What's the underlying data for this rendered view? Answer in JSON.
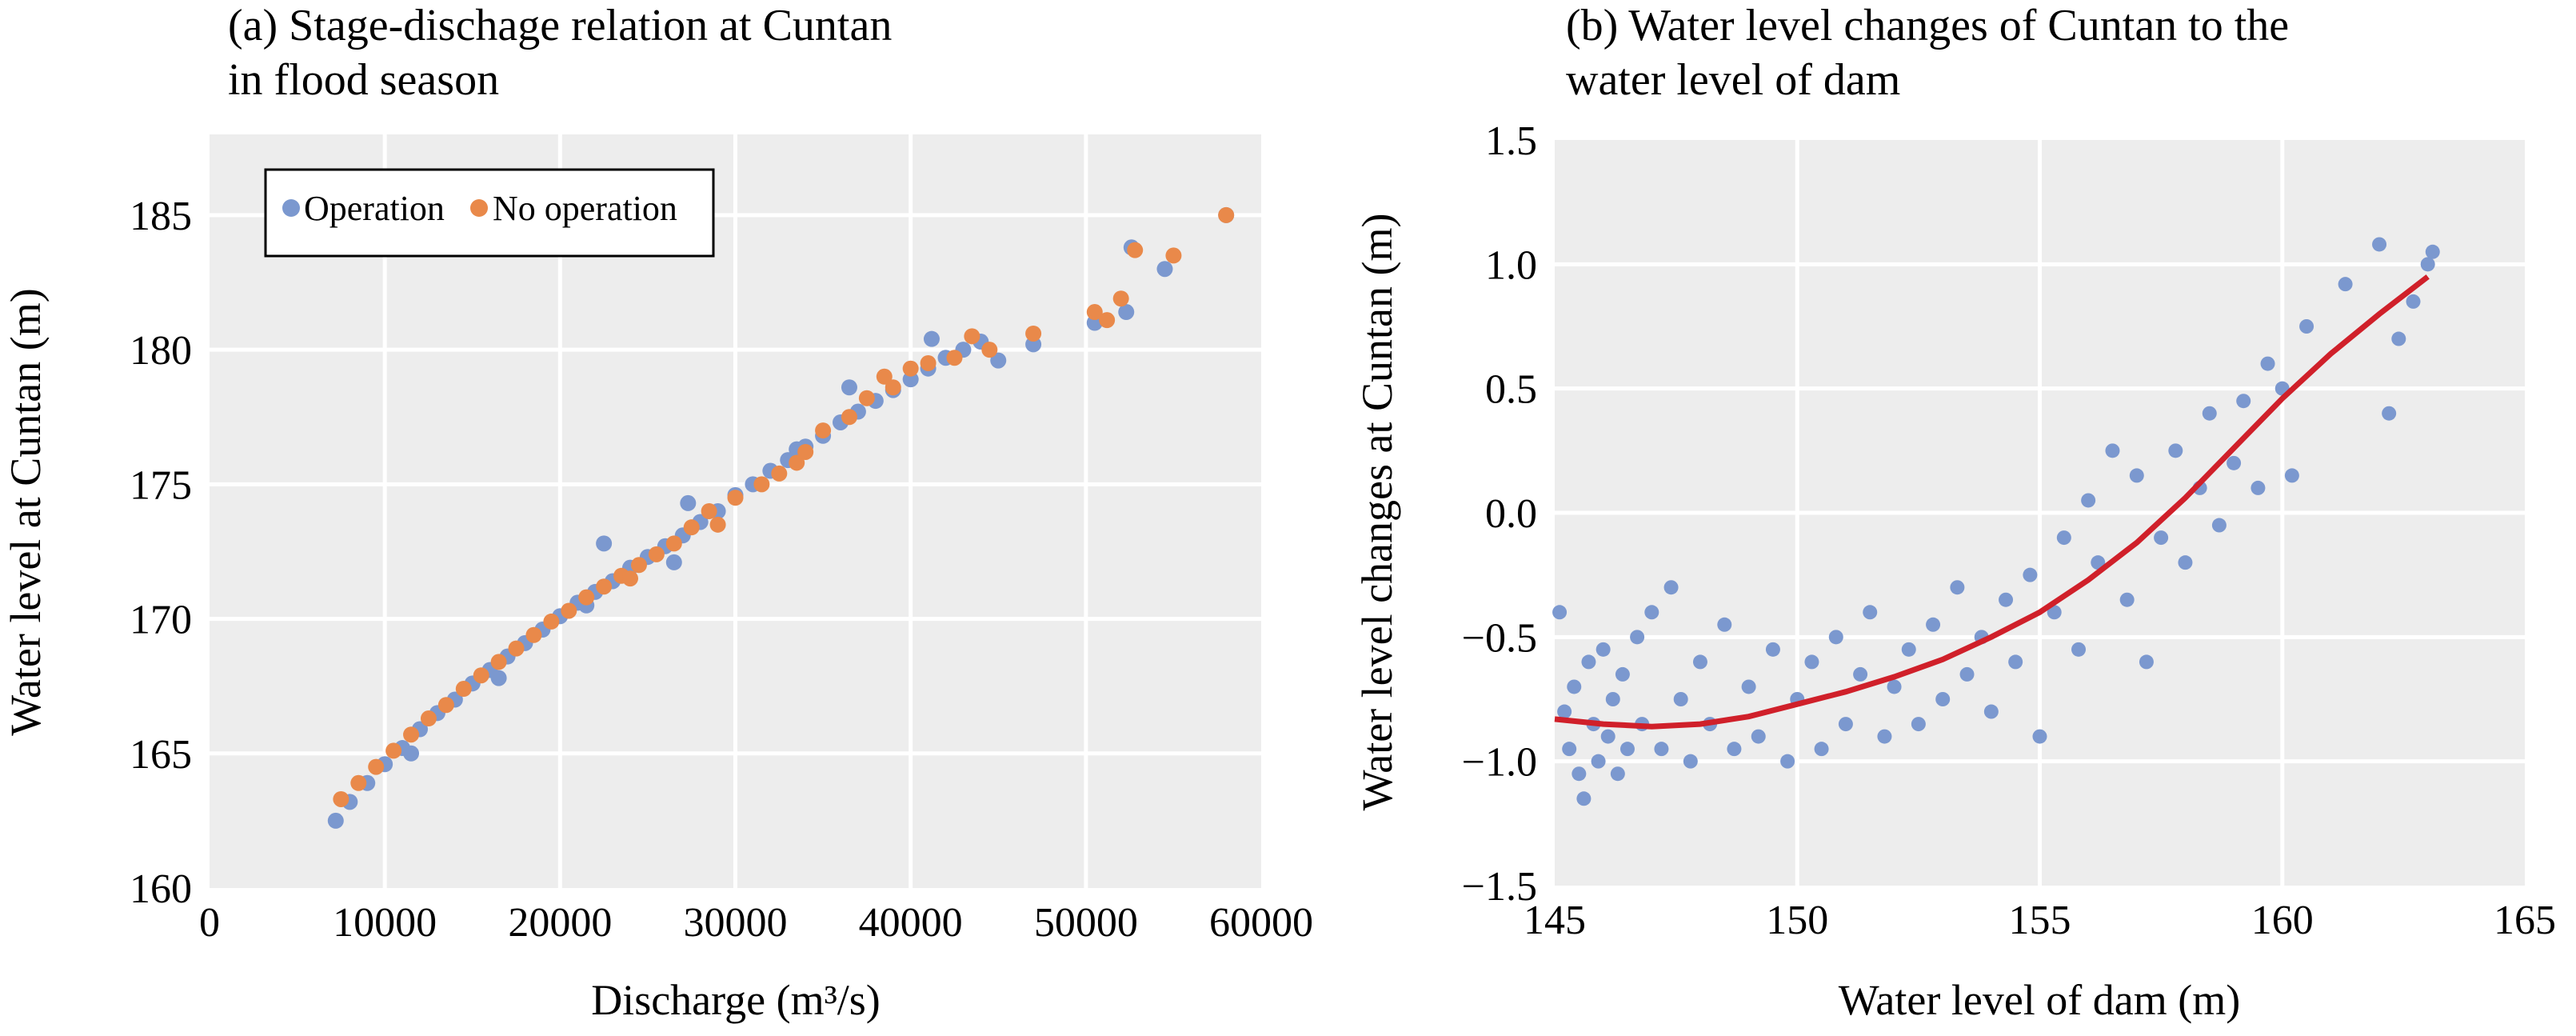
{
  "figure": {
    "panel_a": {
      "title_line1": "(a) Stage-dischage relation at Cuntan",
      "title_line2": "in flood season",
      "xlabel": "Discharge (m³/s)",
      "ylabel": "Water level at Cuntan (m)",
      "legend": {
        "operation": "Operation",
        "no_operation": "No operation"
      }
    },
    "panel_b": {
      "title_line1": "(b) Water level changes of Cuntan to the",
      "title_line2": "water level of dam",
      "xlabel": "Water level of dam (m)",
      "ylabel": "Water level changes at Cuntan (m)"
    }
  },
  "chart_data": [
    {
      "type": "scatter",
      "title": "(a) Stage-dischage relation at Cuntan in flood season",
      "xlabel": "Discharge (m³/s)",
      "ylabel": "Water level at Cuntan (m)",
      "xlim": [
        0,
        60000
      ],
      "ylim": [
        160,
        188
      ],
      "xticks": [
        "0",
        "10000",
        "20000",
        "30000",
        "40000",
        "50000",
        "60000"
      ],
      "yticks": [
        "160",
        "165",
        "170",
        "175",
        "180",
        "185"
      ],
      "grid": true,
      "legend_position": "top-left",
      "colors": {
        "Operation": "#7b98cf",
        "No operation": "#e9894a"
      },
      "series": [
        {
          "name": "Operation",
          "points": [
            [
              7200,
              162.5
            ],
            [
              8000,
              163.2
            ],
            [
              9000,
              163.9
            ],
            [
              10000,
              164.6
            ],
            [
              11000,
              165.2
            ],
            [
              12000,
              165.9
            ],
            [
              13000,
              166.5
            ],
            [
              14000,
              167.0
            ],
            [
              15000,
              167.6
            ],
            [
              16000,
              168.1
            ],
            [
              17000,
              168.6
            ],
            [
              18000,
              169.1
            ],
            [
              19000,
              169.6
            ],
            [
              20000,
              170.1
            ],
            [
              21000,
              170.6
            ],
            [
              22000,
              171.0
            ],
            [
              23000,
              171.4
            ],
            [
              24000,
              171.9
            ],
            [
              25000,
              172.3
            ],
            [
              26000,
              172.7
            ],
            [
              27000,
              173.1
            ],
            [
              28000,
              173.6
            ],
            [
              29000,
              174.0
            ],
            [
              30000,
              174.6
            ],
            [
              31000,
              175.0
            ],
            [
              32000,
              175.5
            ],
            [
              33000,
              175.9
            ],
            [
              34000,
              176.4
            ],
            [
              35000,
              176.8
            ],
            [
              36000,
              177.3
            ],
            [
              37000,
              177.7
            ],
            [
              38000,
              178.1
            ],
            [
              39000,
              178.5
            ],
            [
              40000,
              178.9
            ],
            [
              41000,
              179.3
            ],
            [
              42000,
              179.7
            ],
            [
              43000,
              180.0
            ],
            [
              44000,
              180.3
            ],
            [
              45000,
              179.6
            ],
            [
              47000,
              180.2
            ],
            [
              50500,
              181.0
            ],
            [
              52300,
              181.4
            ],
            [
              52600,
              183.8
            ],
            [
              54500,
              183.0
            ],
            [
              58000,
              185.0
            ],
            [
              11500,
              165.0
            ],
            [
              16500,
              167.8
            ],
            [
              21500,
              170.5
            ],
            [
              26500,
              172.1
            ],
            [
              33500,
              176.3
            ],
            [
              36500,
              178.6
            ],
            [
              41200,
              180.4
            ],
            [
              22500,
              172.8
            ],
            [
              27300,
              174.3
            ]
          ]
        },
        {
          "name": "No operation",
          "points": [
            [
              7500,
              163.3
            ],
            [
              8500,
              163.9
            ],
            [
              9500,
              164.5
            ],
            [
              10500,
              165.1
            ],
            [
              11500,
              165.7
            ],
            [
              12500,
              166.3
            ],
            [
              13500,
              166.8
            ],
            [
              14500,
              167.4
            ],
            [
              15500,
              167.9
            ],
            [
              16500,
              168.4
            ],
            [
              17500,
              168.9
            ],
            [
              18500,
              169.4
            ],
            [
              19500,
              169.9
            ],
            [
              20500,
              170.3
            ],
            [
              21500,
              170.8
            ],
            [
              22500,
              171.2
            ],
            [
              23500,
              171.6
            ],
            [
              24500,
              172.0
            ],
            [
              25500,
              172.4
            ],
            [
              26500,
              172.8
            ],
            [
              27500,
              173.4
            ],
            [
              28500,
              174.0
            ],
            [
              30000,
              174.5
            ],
            [
              31500,
              175.0
            ],
            [
              32500,
              175.4
            ],
            [
              33500,
              175.8
            ],
            [
              35000,
              177.0
            ],
            [
              36500,
              177.5
            ],
            [
              37500,
              178.2
            ],
            [
              38500,
              179.0
            ],
            [
              40000,
              179.3
            ],
            [
              41000,
              179.5
            ],
            [
              42500,
              179.7
            ],
            [
              43500,
              180.5
            ],
            [
              44500,
              180.0
            ],
            [
              47000,
              180.6
            ],
            [
              50500,
              181.4
            ],
            [
              51200,
              181.1
            ],
            [
              52000,
              181.9
            ],
            [
              52800,
              183.7
            ],
            [
              55000,
              183.5
            ],
            [
              58000,
              185.0
            ],
            [
              24000,
              171.5
            ],
            [
              29000,
              173.5
            ],
            [
              34000,
              176.2
            ],
            [
              39000,
              178.6
            ]
          ]
        }
      ]
    },
    {
      "type": "scatter",
      "title": "(b) Water level changes of Cuntan to the water level of dam",
      "xlabel": "Water level of dam (m)",
      "ylabel": "Water level changes at Cuntan (m)",
      "xlim": [
        145,
        165
      ],
      "ylim": [
        -1.5,
        1.5
      ],
      "xticks": [
        "145",
        "150",
        "155",
        "160",
        "165"
      ],
      "yticks": [
        "−1.5",
        "−1.0",
        "−0.5",
        "0.0",
        "0.5",
        "1.0",
        "1.5"
      ],
      "grid": true,
      "colors": {
        "points": "#7b98cf",
        "fit": "#d0202a"
      },
      "fit_curve": [
        [
          145,
          -0.83
        ],
        [
          146,
          -0.85
        ],
        [
          147,
          -0.86
        ],
        [
          148,
          -0.85
        ],
        [
          149,
          -0.82
        ],
        [
          150,
          -0.77
        ],
        [
          151,
          -0.72
        ],
        [
          152,
          -0.66
        ],
        [
          153,
          -0.59
        ],
        [
          154,
          -0.5
        ],
        [
          155,
          -0.4
        ],
        [
          156,
          -0.27
        ],
        [
          157,
          -0.12
        ],
        [
          158,
          0.06
        ],
        [
          159,
          0.26
        ],
        [
          160,
          0.46
        ],
        [
          161,
          0.64
        ],
        [
          162,
          0.8
        ],
        [
          163,
          0.95
        ]
      ],
      "points": [
        [
          145.1,
          -0.4
        ],
        [
          145.2,
          -0.8
        ],
        [
          145.3,
          -0.95
        ],
        [
          145.4,
          -0.7
        ],
        [
          145.5,
          -1.05
        ],
        [
          145.6,
          -1.15
        ],
        [
          145.7,
          -0.6
        ],
        [
          145.8,
          -0.85
        ],
        [
          145.9,
          -1.0
        ],
        [
          146.0,
          -0.55
        ],
        [
          146.1,
          -0.9
        ],
        [
          146.2,
          -0.75
        ],
        [
          146.3,
          -1.05
        ],
        [
          146.4,
          -0.65
        ],
        [
          146.5,
          -0.95
        ],
        [
          146.7,
          -0.5
        ],
        [
          146.8,
          -0.85
        ],
        [
          147.0,
          -0.4
        ],
        [
          147.2,
          -0.95
        ],
        [
          147.4,
          -0.3
        ],
        [
          147.6,
          -0.75
        ],
        [
          147.8,
          -1.0
        ],
        [
          148.0,
          -0.6
        ],
        [
          148.2,
          -0.85
        ],
        [
          148.5,
          -0.45
        ],
        [
          148.7,
          -0.95
        ],
        [
          149.0,
          -0.7
        ],
        [
          149.2,
          -0.9
        ],
        [
          149.5,
          -0.55
        ],
        [
          149.8,
          -1.0
        ],
        [
          150.0,
          -0.75
        ],
        [
          150.3,
          -0.6
        ],
        [
          150.5,
          -0.95
        ],
        [
          150.8,
          -0.5
        ],
        [
          151.0,
          -0.85
        ],
        [
          151.3,
          -0.65
        ],
        [
          151.5,
          -0.4
        ],
        [
          151.8,
          -0.9
        ],
        [
          152.0,
          -0.7
        ],
        [
          152.3,
          -0.55
        ],
        [
          152.5,
          -0.85
        ],
        [
          152.8,
          -0.45
        ],
        [
          153.0,
          -0.75
        ],
        [
          153.3,
          -0.3
        ],
        [
          153.5,
          -0.65
        ],
        [
          153.8,
          -0.5
        ],
        [
          154.0,
          -0.8
        ],
        [
          154.3,
          -0.35
        ],
        [
          154.5,
          -0.6
        ],
        [
          154.8,
          -0.25
        ],
        [
          155.0,
          -0.9
        ],
        [
          155.3,
          -0.4
        ],
        [
          155.5,
          -0.1
        ],
        [
          155.8,
          -0.55
        ],
        [
          156.0,
          0.05
        ],
        [
          156.2,
          -0.2
        ],
        [
          156.5,
          0.25
        ],
        [
          156.8,
          -0.35
        ],
        [
          157.0,
          0.15
        ],
        [
          157.2,
          -0.6
        ],
        [
          157.5,
          -0.1
        ],
        [
          157.8,
          0.25
        ],
        [
          158.0,
          -0.2
        ],
        [
          158.3,
          0.1
        ],
        [
          158.5,
          0.4
        ],
        [
          158.7,
          -0.05
        ],
        [
          159.0,
          0.2
        ],
        [
          159.2,
          0.45
        ],
        [
          159.5,
          0.1
        ],
        [
          159.7,
          0.6
        ],
        [
          160.0,
          0.5
        ],
        [
          160.2,
          0.15
        ],
        [
          160.5,
          0.75
        ],
        [
          161.3,
          0.92
        ],
        [
          162.0,
          1.08
        ],
        [
          162.2,
          0.4
        ],
        [
          162.4,
          0.7
        ],
        [
          162.7,
          0.85
        ],
        [
          163.0,
          1.0
        ],
        [
          163.1,
          1.05
        ]
      ]
    }
  ]
}
